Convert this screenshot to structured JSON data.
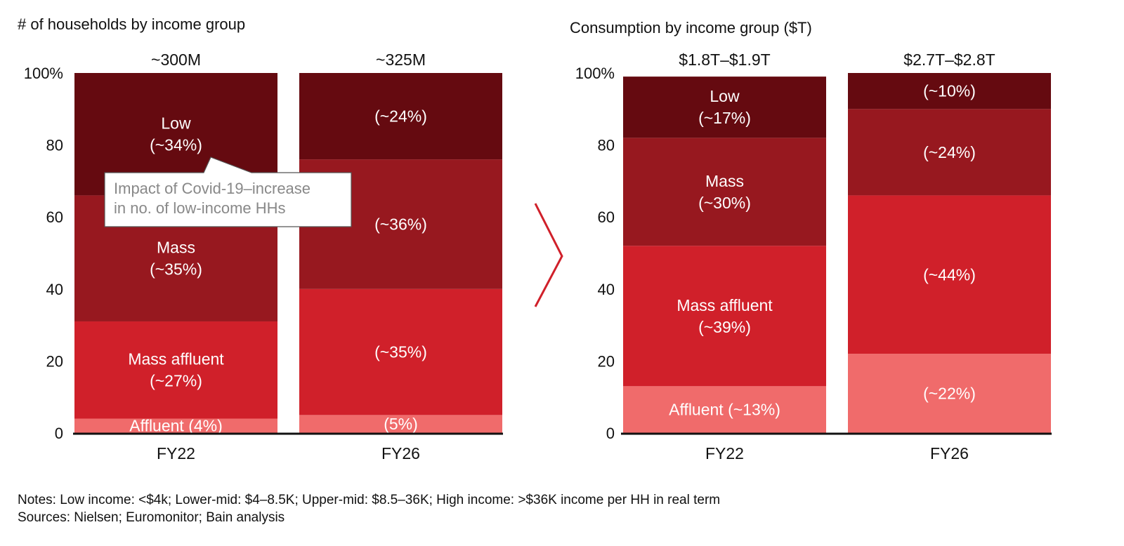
{
  "chart_data": [
    {
      "type": "bar",
      "stacked": true,
      "percent": true,
      "title": "# of households by income group",
      "categories": [
        "FY22",
        "FY26"
      ],
      "totals": [
        "~300M",
        "~325M"
      ],
      "yticks": [
        "0",
        "20",
        "40",
        "60",
        "80",
        "100%"
      ],
      "ylim": [
        0,
        100
      ],
      "series": [
        {
          "name": "Affluent",
          "color": "#f06b6b",
          "values": [
            4,
            5
          ],
          "labels": [
            "Affluent (4%)",
            "(5%)"
          ]
        },
        {
          "name": "Mass affluent",
          "color": "#d0202a",
          "values": [
            27,
            35
          ],
          "labels": [
            "Mass affluent\n(~27%)",
            "(~35%)"
          ]
        },
        {
          "name": "Mass",
          "color": "#97181f",
          "values": [
            35,
            36
          ],
          "labels": [
            "Mass\n(~35%)",
            "(~36%)"
          ]
        },
        {
          "name": "Low",
          "color": "#650a10",
          "values": [
            34,
            24
          ],
          "labels": [
            "Low\n(~34%)",
            "(~24%)"
          ]
        }
      ],
      "annotation": {
        "lines": [
          "Impact of Covid-19–increase",
          "in no. of low-income HHs"
        ]
      }
    },
    {
      "type": "bar",
      "stacked": true,
      "percent": true,
      "title": "Consumption by income group ($T)",
      "categories": [
        "FY22",
        "FY26"
      ],
      "totals": [
        "$1.8T–$1.9T",
        "$2.7T–$2.8T"
      ],
      "yticks": [
        "0",
        "20",
        "40",
        "60",
        "80",
        "100%"
      ],
      "ylim": [
        0,
        100
      ],
      "series": [
        {
          "name": "Affluent",
          "color": "#f06b6b",
          "values": [
            13,
            22
          ],
          "labels": [
            "Affluent (~13%)",
            "(~22%)"
          ]
        },
        {
          "name": "Mass affluent",
          "color": "#d0202a",
          "values": [
            39,
            44
          ],
          "labels": [
            "Mass affluent\n(~39%)",
            "(~44%)"
          ]
        },
        {
          "name": "Mass",
          "color": "#97181f",
          "values": [
            30,
            24
          ],
          "labels": [
            "Mass\n(~30%)",
            "(~24%)"
          ]
        },
        {
          "name": "Low",
          "color": "#650a10",
          "values": [
            17,
            10
          ],
          "labels": [
            "Low\n(~17%)",
            "(~10%)"
          ]
        }
      ]
    }
  ],
  "notes": {
    "line1": "Notes: Low income: <$4k; Lower-mid: $4–8.5K; Upper-mid: $8.5–36K; High income: >$36K income per HH in real term",
    "line2": "Sources: Nielsen; Euromonitor; Bain analysis"
  },
  "colors": {
    "arrow": "#d0202a",
    "axis": "#111111",
    "label_text": "#ffffff",
    "callout_text": "#888888"
  }
}
